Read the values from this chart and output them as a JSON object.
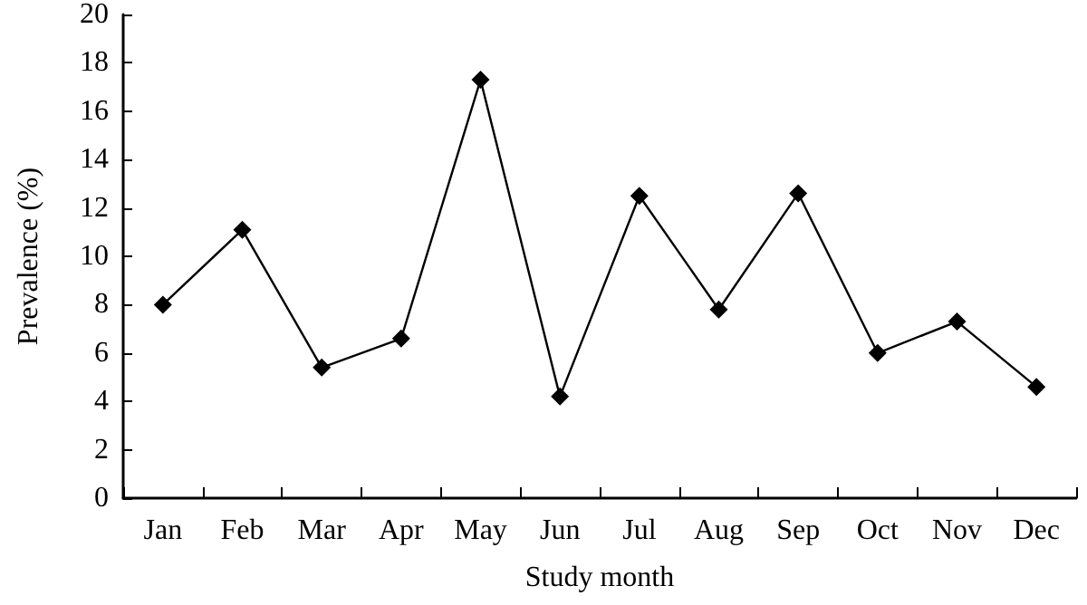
{
  "chart_data": {
    "type": "line",
    "xlabel": "Study month",
    "ylabel": "Prevalence (%)",
    "categories": [
      "Jan",
      "Feb",
      "Mar",
      "Apr",
      "May",
      "Jun",
      "Jul",
      "Aug",
      "Sep",
      "Oct",
      "Nov",
      "Dec"
    ],
    "series": [
      {
        "color": "#000000",
        "values": [
          8.0,
          11.1,
          5.4,
          6.6,
          17.3,
          4.2,
          12.5,
          7.8,
          12.6,
          6.0,
          7.3,
          4.6
        ]
      }
    ],
    "ylim": [
      0,
      20
    ],
    "yticks": [
      0,
      2,
      4,
      6,
      8,
      10,
      12,
      14,
      16,
      18,
      20
    ],
    "grid": false,
    "marker": "diamond",
    "line_style": "solid"
  }
}
